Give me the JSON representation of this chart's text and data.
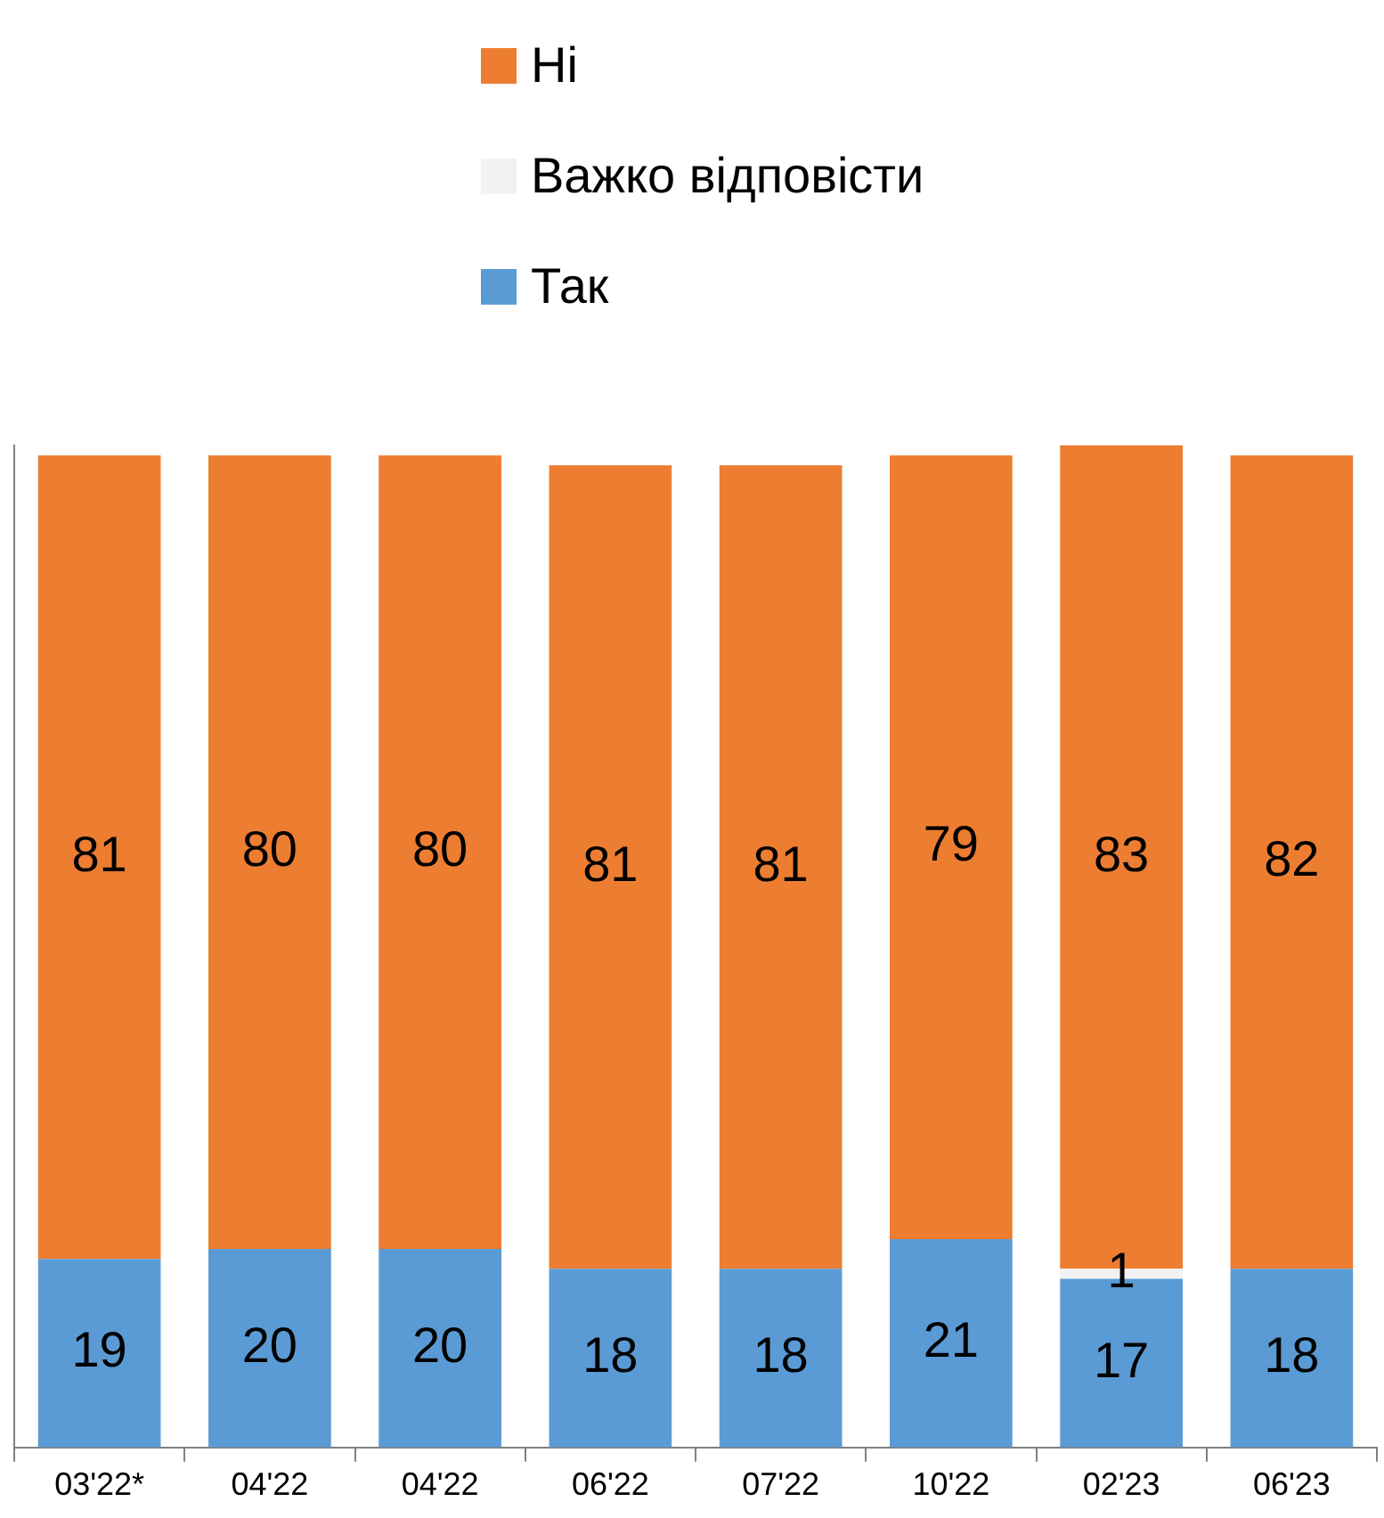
{
  "chart_data": {
    "type": "bar",
    "stacked": true,
    "categories": [
      "03'22*",
      "04'22",
      "04'22",
      "06'22",
      "07'22",
      "10'22",
      "02'23",
      "06'23"
    ],
    "series": [
      {
        "name": "Так",
        "color": "#5b9bd5",
        "values": [
          19,
          20,
          20,
          18,
          18,
          21,
          17,
          18
        ]
      },
      {
        "name": "Важко відповісти",
        "color": "#f2f2f2",
        "values": [
          null,
          null,
          null,
          null,
          null,
          null,
          1,
          null
        ]
      },
      {
        "name": "Ні",
        "color": "#ed7d31",
        "values": [
          81,
          80,
          80,
          81,
          81,
          79,
          83,
          82
        ]
      }
    ],
    "data_labels": true,
    "legend": "top",
    "grid": false
  }
}
